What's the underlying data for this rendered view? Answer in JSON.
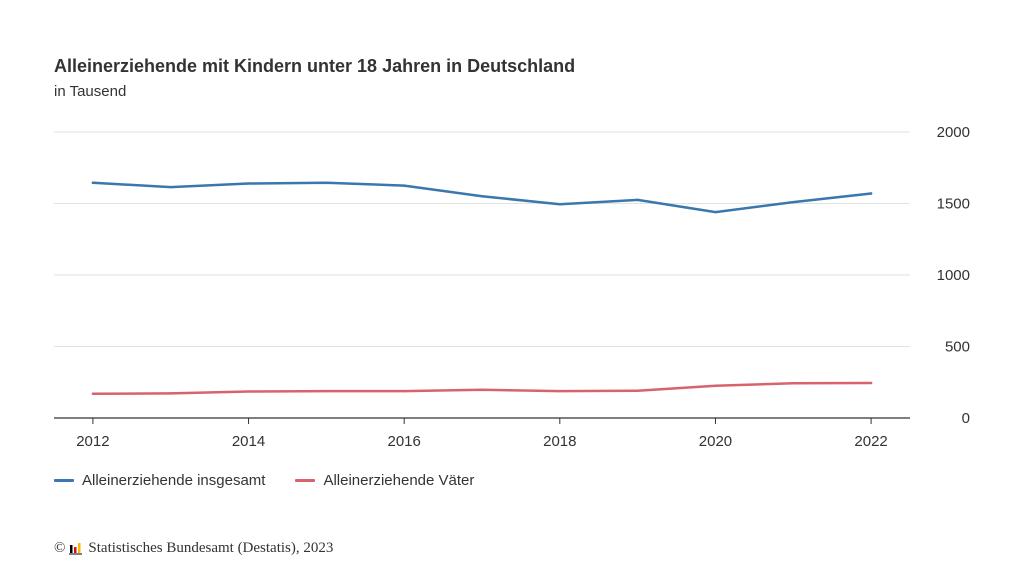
{
  "chart_data": {
    "type": "line",
    "title": "Alleinerziehende mit Kindern unter 18 Jahren in Deutschland",
    "subtitle": "in Tausend",
    "x": [
      2012,
      2013,
      2014,
      2015,
      2016,
      2017,
      2018,
      2019,
      2020,
      2021,
      2022
    ],
    "xticks": [
      "2012",
      "2014",
      "2016",
      "2018",
      "2020",
      "2022"
    ],
    "yticks": [
      "0",
      "500",
      "1000",
      "1500",
      "2000"
    ],
    "ylim": [
      0,
      2000
    ],
    "xlim": [
      2011.5,
      2022.5
    ],
    "xlabel": "",
    "ylabel": "",
    "grid": true,
    "legend_position": "bottom-left",
    "series": [
      {
        "name": "Alleinerziehende insgesamt",
        "color": "#3a77ae",
        "values": [
          1645,
          1615,
          1640,
          1645,
          1625,
          1550,
          1495,
          1525,
          1440,
          1510,
          1570
        ]
      },
      {
        "name": "Alleinerziehende Väter",
        "color": "#d8636e",
        "values": [
          170,
          172,
          185,
          188,
          188,
          197,
          188,
          190,
          225,
          243,
          245
        ]
      }
    ]
  },
  "source": {
    "copyright": "©",
    "text": "Statistisches Bundesamt (Destatis), 2023",
    "logo_colors": [
      "#000000",
      "#d30f1b",
      "#f6b900"
    ]
  }
}
